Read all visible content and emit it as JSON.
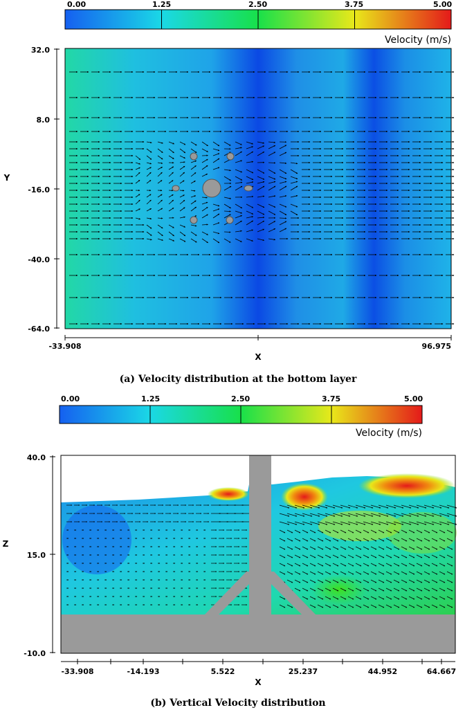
{
  "chart_data": [
    {
      "type": "heatmap",
      "title": "",
      "caption": "(a)  Velocity distribution at the bottom layer",
      "colorbar": {
        "label": "Velocity (m/s)",
        "ticks": [
          "0.00",
          "1.25",
          "2.50",
          "3.75",
          "5.00"
        ],
        "range": [
          0,
          5
        ]
      },
      "xlabel": "X",
      "ylabel": "Y",
      "xlim": [
        -33.908,
        96.975
      ],
      "ylim": [
        -64.0,
        32.0
      ],
      "x_ticks": [
        "-33.908",
        "96.975"
      ],
      "y_ticks": [
        "32.0",
        "8.0",
        "-16.0",
        "-40.0",
        "-64.0"
      ],
      "vector_field": true
    },
    {
      "type": "heatmap",
      "title": "",
      "caption": "(b) Vertical Velocity distribution",
      "colorbar": {
        "label": "Velocity (m/s)",
        "ticks": [
          "0.00",
          "1.25",
          "2.50",
          "3.75",
          "5.00"
        ],
        "range": [
          0,
          5
        ]
      },
      "xlabel": "X",
      "ylabel": "Z",
      "xlim": [
        -33.908,
        64.667
      ],
      "ylim": [
        -10.0,
        40.0
      ],
      "x_ticks": [
        "-33.908",
        "-14.193",
        "5.522",
        "25.237",
        "44.952",
        "64.667"
      ],
      "y_ticks": [
        "40.0",
        "15.0",
        "-10.0"
      ],
      "vector_field": true
    }
  ],
  "colors": {
    "low": "#1560f0",
    "mid_low": "#1ad8e6",
    "mid": "#18e04a",
    "mid_high": "#e8e81a",
    "high": "#e41a1a",
    "structure": "#9a9a9a"
  }
}
